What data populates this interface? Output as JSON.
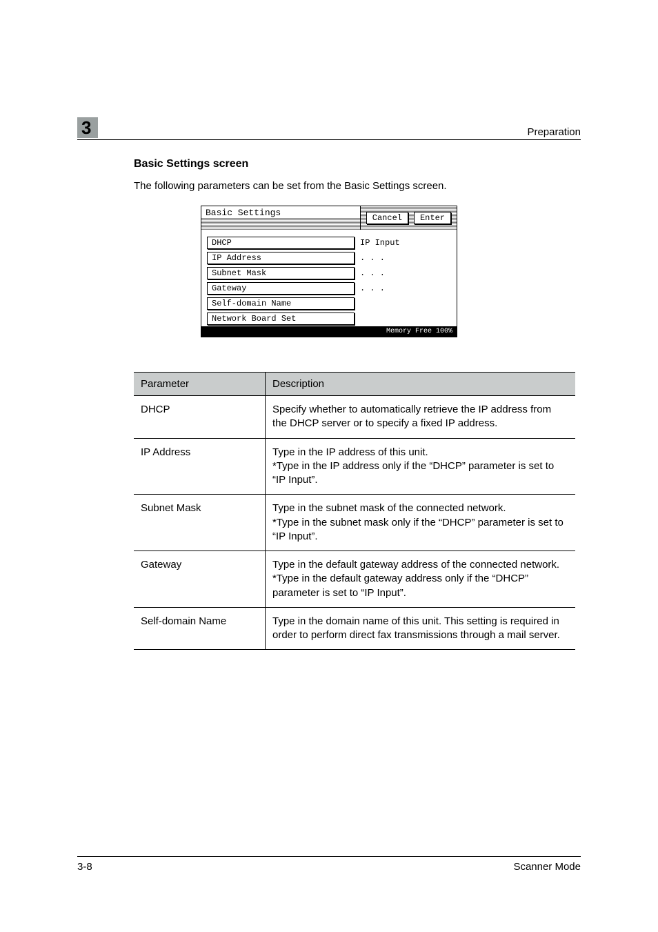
{
  "header": {
    "chapter_number": "3",
    "running_title": "Preparation"
  },
  "section": {
    "heading": "Basic Settings screen",
    "intro": "The following parameters can be set from the Basic Settings screen."
  },
  "screenshot": {
    "title": "Basic Settings",
    "buttons": {
      "cancel": "Cancel",
      "enter": "Enter"
    },
    "rows": [
      {
        "label": "DHCP",
        "value": "IP Input"
      },
      {
        "label": "IP Address",
        "value": ".   .   ."
      },
      {
        "label": "Subnet Mask",
        "value": ".   .   ."
      },
      {
        "label": "Gateway",
        "value": ".   .   ."
      },
      {
        "label": "Self-domain Name",
        "value": ""
      },
      {
        "label": "Network Board Set",
        "value": ""
      }
    ],
    "footer_label": "Memory Free",
    "footer_value": "100%"
  },
  "table": {
    "columns": {
      "param": "Parameter",
      "desc": "Description"
    },
    "rows": [
      {
        "param": "DHCP",
        "desc": "Specify whether to automatically retrieve the IP address from the DHCP server or to specify a fixed IP address."
      },
      {
        "param": "IP Address",
        "desc": "Type in the IP address of this unit.\n*Type in the IP address only if the “DHCP” parameter is set to “IP Input”."
      },
      {
        "param": "Subnet Mask",
        "desc": "Type in the subnet mask of the connected network.\n*Type in the subnet mask only if the “DHCP” parameter is set to “IP Input”."
      },
      {
        "param": "Gateway",
        "desc": "Type in the default gateway address of the connected network.\n*Type in the default gateway address only if the “DHCP” parameter is set to “IP Input”."
      },
      {
        "param": "Self-domain Name",
        "desc": "Type in the domain name of this unit. This setting is required in order to perform direct fax transmissions through a mail server."
      }
    ]
  },
  "footer": {
    "page_number": "3-8",
    "doc_title": "Scanner Mode"
  },
  "colors": {
    "badge_bg": "#9aa0a0",
    "table_header_bg": "#c9cccc",
    "rule": "#000000",
    "page_bg": "#ffffff"
  },
  "typography": {
    "body_fontsize_pt": 11,
    "heading_fontsize_pt": 12,
    "chapter_fontsize_pt": 20
  }
}
